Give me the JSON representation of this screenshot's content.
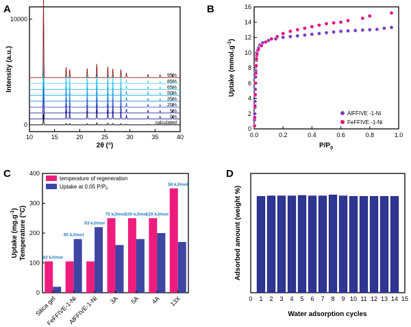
{
  "chart_data": [
    {
      "panel": "A",
      "type": "line",
      "xlabel": "2θ (°)",
      "ylabel": "Intensity (a.u.)",
      "xlim": [
        10,
        40
      ],
      "xticks": [
        10,
        15,
        20,
        25,
        30,
        35,
        40
      ],
      "yticks": [
        0,
        10000
      ],
      "series": [
        {
          "name": "calculated",
          "color": "#000000"
        },
        {
          "name": "0%",
          "color": "#1a1a8c"
        },
        {
          "name": "5%",
          "color": "#2a2aa8"
        },
        {
          "name": "20%",
          "color": "#3a56c8"
        },
        {
          "name": "35%",
          "color": "#2f8fd8"
        },
        {
          "name": "50%",
          "color": "#27a9e1"
        },
        {
          "name": "65%",
          "color": "#35c3ea"
        },
        {
          "name": "85%",
          "color": "#55d4f0"
        },
        {
          "name": "95%",
          "color": "#8b1a1a"
        }
      ],
      "peaks": [
        {
          "x": 12.8,
          "h": 118
        },
        {
          "x": 17.3,
          "h": 16
        },
        {
          "x": 18.0,
          "h": 12
        },
        {
          "x": 21.5,
          "h": 14
        },
        {
          "x": 23.4,
          "h": 20
        },
        {
          "x": 25.6,
          "h": 16
        },
        {
          "x": 26.6,
          "h": 13
        },
        {
          "x": 28.2,
          "h": 12
        },
        {
          "x": 29.3,
          "h": 7
        },
        {
          "x": 33.6,
          "h": 5
        },
        {
          "x": 36.0,
          "h": 4
        },
        {
          "x": 38.5,
          "h": 5
        }
      ]
    },
    {
      "panel": "B",
      "type": "scatter",
      "xlabel": "P/P0",
      "ylabel": "Uptake (mmol.g-1)",
      "xlim": [
        0,
        1.0
      ],
      "ylim": [
        0,
        16
      ],
      "xticks": [
        0.0,
        0.2,
        0.4,
        0.6,
        0.8,
        1.0
      ],
      "yticks": [
        0,
        2,
        4,
        6,
        8,
        10,
        12,
        14,
        16
      ],
      "legend": "bottom-right",
      "series": [
        {
          "name": "AlFFIVE -1-Ni",
          "color": "#7b3fc4",
          "x": [
            0.002,
            0.003,
            0.004,
            0.005,
            0.006,
            0.007,
            0.008,
            0.009,
            0.01,
            0.012,
            0.014,
            0.016,
            0.018,
            0.02,
            0.025,
            0.03,
            0.04,
            0.06,
            0.1,
            0.15,
            0.2,
            0.25,
            0.3,
            0.35,
            0.4,
            0.45,
            0.5,
            0.55,
            0.6,
            0.65,
            0.7,
            0.75,
            0.8,
            0.85,
            0.9,
            0.95
          ],
          "y": [
            0.4,
            1.2,
            2.0,
            2.8,
            3.6,
            4.4,
            5.2,
            6.0,
            6.8,
            7.6,
            8.3,
            9.0,
            9.6,
            10.0,
            10.3,
            10.6,
            11.0,
            11.3,
            11.6,
            11.8,
            12.0,
            12.1,
            12.2,
            12.3,
            12.4,
            12.5,
            12.6,
            12.7,
            12.8,
            12.85,
            12.9,
            12.95,
            13.0,
            13.05,
            13.2,
            13.3
          ]
        },
        {
          "name": "FeFFIVE -1-Ni",
          "color": "#e8137a",
          "x": [
            0.003,
            0.004,
            0.006,
            0.008,
            0.01,
            0.012,
            0.014,
            0.016,
            0.02,
            0.03,
            0.05,
            0.08,
            0.12,
            0.16,
            0.2,
            0.25,
            0.3,
            0.35,
            0.4,
            0.45,
            0.5,
            0.55,
            0.6,
            0.65,
            0.75,
            0.8,
            0.95
          ],
          "y": [
            0.4,
            1.5,
            3.0,
            4.5,
            6.0,
            7.3,
            8.3,
            9.2,
            9.8,
            10.4,
            10.9,
            11.4,
            11.8,
            12.1,
            12.5,
            12.8,
            13.0,
            13.2,
            13.4,
            13.6,
            13.8,
            13.9,
            14.0,
            14.2,
            14.5,
            14.8,
            15.2
          ]
        }
      ]
    },
    {
      "panel": "C",
      "type": "bar",
      "categories": [
        "Silica gel",
        "FeFFIVE-1-Ni",
        "AlFFIVE-1-Ni",
        "3A",
        "5A",
        "4A",
        "13X"
      ],
      "ylabel": "Uptake (mg.g-1)\nTemperature (°C)",
      "ylim": [
        0,
        400
      ],
      "yticks": [
        0,
        100,
        200,
        300,
        400
      ],
      "legend": "top-left",
      "series": [
        {
          "name": "temperature of regeneration",
          "color": "#ee1d7d",
          "values": [
            105,
            105,
            105,
            250,
            250,
            250,
            350
          ]
        },
        {
          "name": "Uptake at 0.05 P/P0",
          "color": "#3e45a3",
          "values": [
            20,
            180,
            220,
            160,
            180,
            200,
            170
          ]
        }
      ],
      "annotations": [
        "43 kJ/mol",
        "65 kJ/mol",
        "63 kJ/mol",
        "75 kJ/mol",
        "100 kJ/mol",
        "120 kJ/mol",
        "58 kJ/mol"
      ]
    },
    {
      "panel": "D",
      "type": "bar",
      "xlabel": "Water adsorption cycles",
      "ylabel": "Adsorbed amount (weight %)",
      "xlim": [
        0,
        15
      ],
      "xticks": [
        0,
        1,
        2,
        3,
        4,
        5,
        6,
        7,
        8,
        9,
        10,
        11,
        12,
        13,
        14,
        15
      ],
      "ylim": [
        0,
        25
      ],
      "categories": [
        1,
        2,
        3,
        4,
        5,
        6,
        7,
        8,
        9,
        10,
        11,
        12,
        13,
        14
      ],
      "values": [
        20.2,
        20.3,
        20.3,
        20.3,
        20.4,
        20.3,
        20.3,
        20.5,
        20.3,
        20.2,
        20.2,
        20.2,
        20.2,
        20.2
      ],
      "color": "#2e3592"
    }
  ]
}
